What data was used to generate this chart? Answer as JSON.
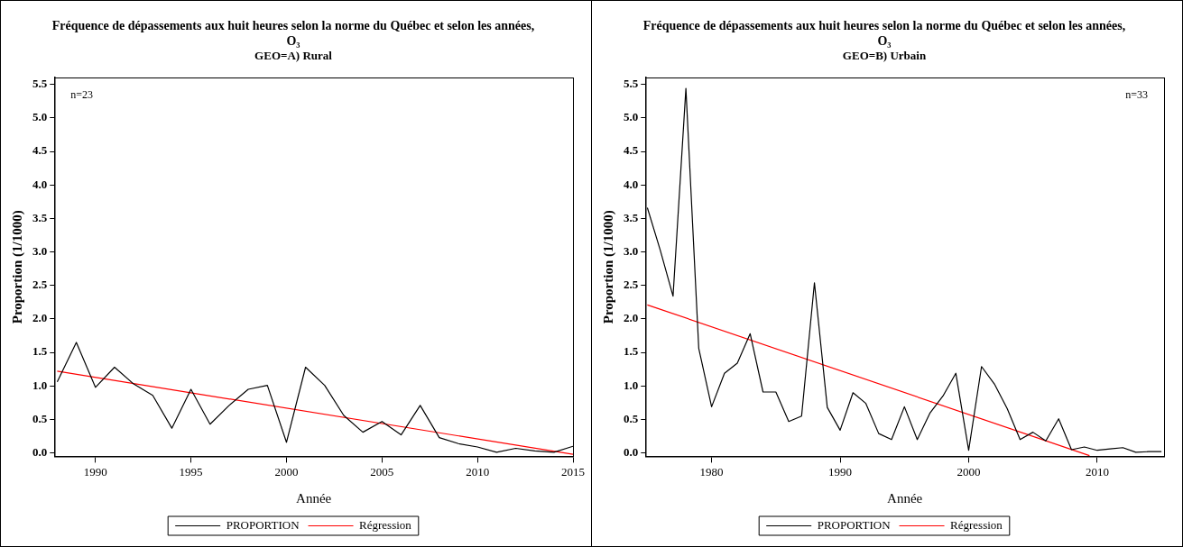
{
  "chart_data": [
    {
      "type": "line",
      "title": "Fréquence de dépassements aux huit heures selon la norme du Québec et selon les années,\nO₃",
      "subtitle": "GEO=A) Rural",
      "xlabel": "Année",
      "ylabel": "Proportion (1/1000)",
      "annotations": [
        "n=23"
      ],
      "x": [
        1988,
        1989,
        1990,
        1991,
        1992,
        1993,
        1994,
        1995,
        1996,
        1997,
        1998,
        1999,
        2000,
        2001,
        2002,
        2003,
        2004,
        2005,
        2006,
        2007,
        2008,
        2009,
        2010,
        2011,
        2012,
        2013,
        2014,
        2015
      ],
      "series": [
        {
          "name": "PROPORTION",
          "color": "#000000",
          "values": [
            1.06,
            1.65,
            0.98,
            1.28,
            1.03,
            0.86,
            0.37,
            0.95,
            0.43,
            0.71,
            0.95,
            1.01,
            0.16,
            1.28,
            1.01,
            0.56,
            0.31,
            0.47,
            0.27,
            0.71,
            0.23,
            0.14,
            0.09,
            0.01,
            0.07,
            0.03,
            0.01,
            0.1
          ]
        },
        {
          "name": "Régression",
          "color": "#ff0000",
          "x": [
            1988,
            2015
          ],
          "values": [
            1.22,
            -0.02
          ]
        }
      ],
      "xlim": [
        1987.85,
        2015
      ],
      "xticks": [
        1990,
        1995,
        2000,
        2005,
        2010,
        2015
      ],
      "ylim": [
        -0.05,
        5.6
      ],
      "yticks": [
        {
          "value": 0,
          "label": "0.0"
        },
        0.5,
        {
          "value": 1,
          "label": "1.0"
        },
        1.5,
        {
          "value": 2,
          "label": "2.0"
        },
        2.5,
        {
          "value": 3,
          "label": "3.0"
        },
        3.5,
        {
          "value": 4,
          "label": "4.0"
        },
        4.5,
        {
          "value": 5,
          "label": "5.0"
        },
        5.5
      ],
      "grid": false,
      "legend": "bottom",
      "marker": "none"
    },
    {
      "type": "line",
      "title": "Fréquence de dépassements aux huit heures selon la norme du Québec et selon les années,\nO₃",
      "subtitle": "GEO=B) Urbain",
      "xlabel": "Année",
      "ylabel": "Proportion (1/1000)",
      "annotations": [
        "n=33"
      ],
      "x": [
        1975,
        1976,
        1977,
        1978,
        1979,
        1980,
        1981,
        1982,
        1983,
        1984,
        1985,
        1986,
        1987,
        1988,
        1989,
        1990,
        1991,
        1992,
        1993,
        1994,
        1995,
        1996,
        1997,
        1998,
        1999,
        2000,
        2001,
        2002,
        2003,
        2004,
        2005,
        2006,
        2007,
        2008,
        2009,
        2010,
        2011,
        2012,
        2013,
        2014,
        2015
      ],
      "series": [
        {
          "name": "PROPORTION",
          "color": "#000000",
          "values": [
            3.66,
            3.03,
            2.34,
            5.44,
            1.56,
            0.69,
            1.19,
            1.34,
            1.78,
            0.91,
            0.91,
            0.47,
            0.55,
            2.54,
            0.68,
            0.34,
            0.9,
            0.74,
            0.29,
            0.2,
            0.69,
            0.2,
            0.6,
            0.85,
            1.19,
            0.04,
            1.29,
            1.03,
            0.66,
            0.2,
            0.31,
            0.18,
            0.51,
            0.05,
            0.09,
            0.04,
            0.06,
            0.08,
            0.01,
            0.02,
            0.02
          ]
        },
        {
          "name": "Régression",
          "color": "#ff0000",
          "x": [
            1975,
            2009.4
          ],
          "values": [
            2.21,
            -0.04
          ]
        }
      ],
      "xlim": [
        1974.85,
        2015.2
      ],
      "xticks": [
        1980,
        1990,
        2000,
        2010
      ],
      "ylim": [
        -0.05,
        5.6
      ],
      "yticks": [
        {
          "value": 0,
          "label": "0.0"
        },
        0.5,
        {
          "value": 1,
          "label": "1.0"
        },
        1.5,
        {
          "value": 2,
          "label": "2.0"
        },
        2.5,
        {
          "value": 3,
          "label": "3.0"
        },
        3.5,
        {
          "value": 4,
          "label": "4.0"
        },
        4.5,
        {
          "value": 5,
          "label": "5.0"
        },
        5.5
      ],
      "grid": false,
      "legend": "bottom",
      "marker": "none"
    }
  ]
}
